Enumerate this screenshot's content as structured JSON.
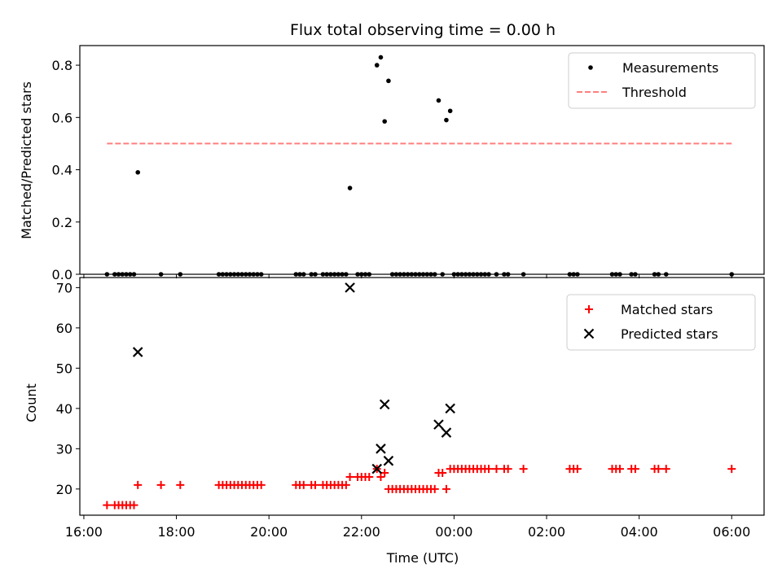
{
  "chart_data": [
    {
      "type": "scatter",
      "title": "Flux total observing time = 0.00 h",
      "ylabel": "Matched/Predicted stars",
      "xlabel": "",
      "xlim": [
        "16:00",
        "06:00"
      ],
      "ylim": [
        0,
        0.875
      ],
      "yticks": [
        "0.0",
        "0.2",
        "0.4",
        "0.6",
        "0.8"
      ],
      "legend_position": "top-right",
      "series": [
        {
          "name": "Measurements",
          "marker": "dot",
          "color": "#000000",
          "points": [
            [
              "16:30",
              0
            ],
            [
              "16:40",
              0
            ],
            [
              "16:45",
              0
            ],
            [
              "16:50",
              0
            ],
            [
              "16:55",
              0
            ],
            [
              "17:00",
              0
            ],
            [
              "17:05",
              0
            ],
            [
              "17:10",
              0.39
            ],
            [
              "17:40",
              0
            ],
            [
              "18:05",
              0
            ],
            [
              "18:55",
              0
            ],
            [
              "19:00",
              0
            ],
            [
              "19:05",
              0
            ],
            [
              "19:10",
              0
            ],
            [
              "19:15",
              0
            ],
            [
              "19:20",
              0
            ],
            [
              "19:25",
              0
            ],
            [
              "19:30",
              0
            ],
            [
              "19:35",
              0
            ],
            [
              "19:40",
              0
            ],
            [
              "19:45",
              0
            ],
            [
              "19:50",
              0
            ],
            [
              "20:35",
              0
            ],
            [
              "20:40",
              0
            ],
            [
              "20:45",
              0
            ],
            [
              "20:55",
              0
            ],
            [
              "21:00",
              0
            ],
            [
              "21:10",
              0
            ],
            [
              "21:15",
              0
            ],
            [
              "21:20",
              0
            ],
            [
              "21:25",
              0
            ],
            [
              "21:30",
              0
            ],
            [
              "21:35",
              0
            ],
            [
              "21:40",
              0
            ],
            [
              "21:45",
              0.33
            ],
            [
              "21:55",
              0
            ],
            [
              "22:00",
              0
            ],
            [
              "22:05",
              0
            ],
            [
              "22:10",
              0
            ],
            [
              "22:20",
              0.8
            ],
            [
              "22:25",
              0.83
            ],
            [
              "22:30",
              0.585
            ],
            [
              "22:35",
              0.74
            ],
            [
              "22:40",
              0
            ],
            [
              "22:45",
              0
            ],
            [
              "22:50",
              0
            ],
            [
              "22:55",
              0
            ],
            [
              "23:00",
              0
            ],
            [
              "23:05",
              0
            ],
            [
              "23:10",
              0
            ],
            [
              "23:15",
              0
            ],
            [
              "23:20",
              0
            ],
            [
              "23:25",
              0
            ],
            [
              "23:30",
              0
            ],
            [
              "23:35",
              0
            ],
            [
              "23:40",
              0.665
            ],
            [
              "23:45",
              0
            ],
            [
              "23:50",
              0.59
            ],
            [
              "23:55",
              0.625
            ],
            [
              "00:00",
              0
            ],
            [
              "00:05",
              0
            ],
            [
              "00:10",
              0
            ],
            [
              "00:15",
              0
            ],
            [
              "00:20",
              0
            ],
            [
              "00:25",
              0
            ],
            [
              "00:30",
              0
            ],
            [
              "00:35",
              0
            ],
            [
              "00:40",
              0
            ],
            [
              "00:45",
              0
            ],
            [
              "00:55",
              0
            ],
            [
              "01:05",
              0
            ],
            [
              "01:10",
              0
            ],
            [
              "01:30",
              0
            ],
            [
              "02:30",
              0
            ],
            [
              "02:35",
              0
            ],
            [
              "02:40",
              0
            ],
            [
              "03:25",
              0
            ],
            [
              "03:30",
              0
            ],
            [
              "03:35",
              0
            ],
            [
              "03:50",
              0
            ],
            [
              "03:55",
              0
            ],
            [
              "04:20",
              0
            ],
            [
              "04:25",
              0
            ],
            [
              "04:35",
              0
            ],
            [
              "06:00",
              0
            ]
          ]
        },
        {
          "name": "Threshold",
          "type": "line",
          "style": "dashed",
          "color": "#ff7f7f",
          "points": [
            [
              "16:30",
              0.5
            ],
            [
              "06:00",
              0.5
            ]
          ]
        }
      ]
    },
    {
      "type": "scatter",
      "title": "",
      "ylabel": "Count",
      "xlabel": "Time (UTC)",
      "xlim": [
        "16:00",
        "06:00"
      ],
      "ylim": [
        13.5,
        72.5
      ],
      "yticks": [
        "20",
        "30",
        "40",
        "50",
        "60",
        "70"
      ],
      "xticks": [
        "16:00",
        "18:00",
        "20:00",
        "22:00",
        "00:00",
        "02:00",
        "04:00",
        "06:00"
      ],
      "legend_position": "top-right",
      "series": [
        {
          "name": "Matched stars",
          "marker": "plus",
          "color": "#ff0000",
          "points": [
            [
              "16:30",
              16
            ],
            [
              "16:40",
              16
            ],
            [
              "16:45",
              16
            ],
            [
              "16:50",
              16
            ],
            [
              "16:55",
              16
            ],
            [
              "17:00",
              16
            ],
            [
              "17:05",
              16
            ],
            [
              "17:10",
              21
            ],
            [
              "17:40",
              21
            ],
            [
              "18:05",
              21
            ],
            [
              "18:55",
              21
            ],
            [
              "19:00",
              21
            ],
            [
              "19:05",
              21
            ],
            [
              "19:10",
              21
            ],
            [
              "19:15",
              21
            ],
            [
              "19:20",
              21
            ],
            [
              "19:25",
              21
            ],
            [
              "19:30",
              21
            ],
            [
              "19:35",
              21
            ],
            [
              "19:40",
              21
            ],
            [
              "19:45",
              21
            ],
            [
              "19:50",
              21
            ],
            [
              "20:35",
              21
            ],
            [
              "20:40",
              21
            ],
            [
              "20:45",
              21
            ],
            [
              "20:55",
              21
            ],
            [
              "21:00",
              21
            ],
            [
              "21:10",
              21
            ],
            [
              "21:15",
              21
            ],
            [
              "21:20",
              21
            ],
            [
              "21:25",
              21
            ],
            [
              "21:30",
              21
            ],
            [
              "21:35",
              21
            ],
            [
              "21:40",
              21
            ],
            [
              "21:45",
              23
            ],
            [
              "21:55",
              23
            ],
            [
              "22:00",
              23
            ],
            [
              "22:05",
              23
            ],
            [
              "22:10",
              23
            ],
            [
              "22:20",
              25
            ],
            [
              "22:25",
              23
            ],
            [
              "22:30",
              24
            ],
            [
              "22:35",
              20
            ],
            [
              "22:40",
              20
            ],
            [
              "22:45",
              20
            ],
            [
              "22:50",
              20
            ],
            [
              "22:55",
              20
            ],
            [
              "23:00",
              20
            ],
            [
              "23:05",
              20
            ],
            [
              "23:10",
              20
            ],
            [
              "23:15",
              20
            ],
            [
              "23:20",
              20
            ],
            [
              "23:25",
              20
            ],
            [
              "23:30",
              20
            ],
            [
              "23:35",
              20
            ],
            [
              "23:40",
              24
            ],
            [
              "23:45",
              24
            ],
            [
              "23:50",
              20
            ],
            [
              "23:55",
              25
            ],
            [
              "00:00",
              25
            ],
            [
              "00:05",
              25
            ],
            [
              "00:10",
              25
            ],
            [
              "00:15",
              25
            ],
            [
              "00:20",
              25
            ],
            [
              "00:25",
              25
            ],
            [
              "00:30",
              25
            ],
            [
              "00:35",
              25
            ],
            [
              "00:40",
              25
            ],
            [
              "00:45",
              25
            ],
            [
              "00:55",
              25
            ],
            [
              "01:05",
              25
            ],
            [
              "01:10",
              25
            ],
            [
              "01:30",
              25
            ],
            [
              "02:30",
              25
            ],
            [
              "02:35",
              25
            ],
            [
              "02:40",
              25
            ],
            [
              "03:25",
              25
            ],
            [
              "03:30",
              25
            ],
            [
              "03:35",
              25
            ],
            [
              "03:50",
              25
            ],
            [
              "03:55",
              25
            ],
            [
              "04:20",
              25
            ],
            [
              "04:25",
              25
            ],
            [
              "04:35",
              25
            ],
            [
              "06:00",
              25
            ]
          ]
        },
        {
          "name": "Predicted stars",
          "marker": "x",
          "color": "#000000",
          "points": [
            [
              "17:10",
              54
            ],
            [
              "21:45",
              70
            ],
            [
              "22:20",
              25
            ],
            [
              "22:25",
              30
            ],
            [
              "22:30",
              41
            ],
            [
              "22:35",
              27
            ],
            [
              "23:40",
              36
            ],
            [
              "23:50",
              34
            ],
            [
              "23:55",
              40
            ]
          ]
        }
      ]
    }
  ]
}
